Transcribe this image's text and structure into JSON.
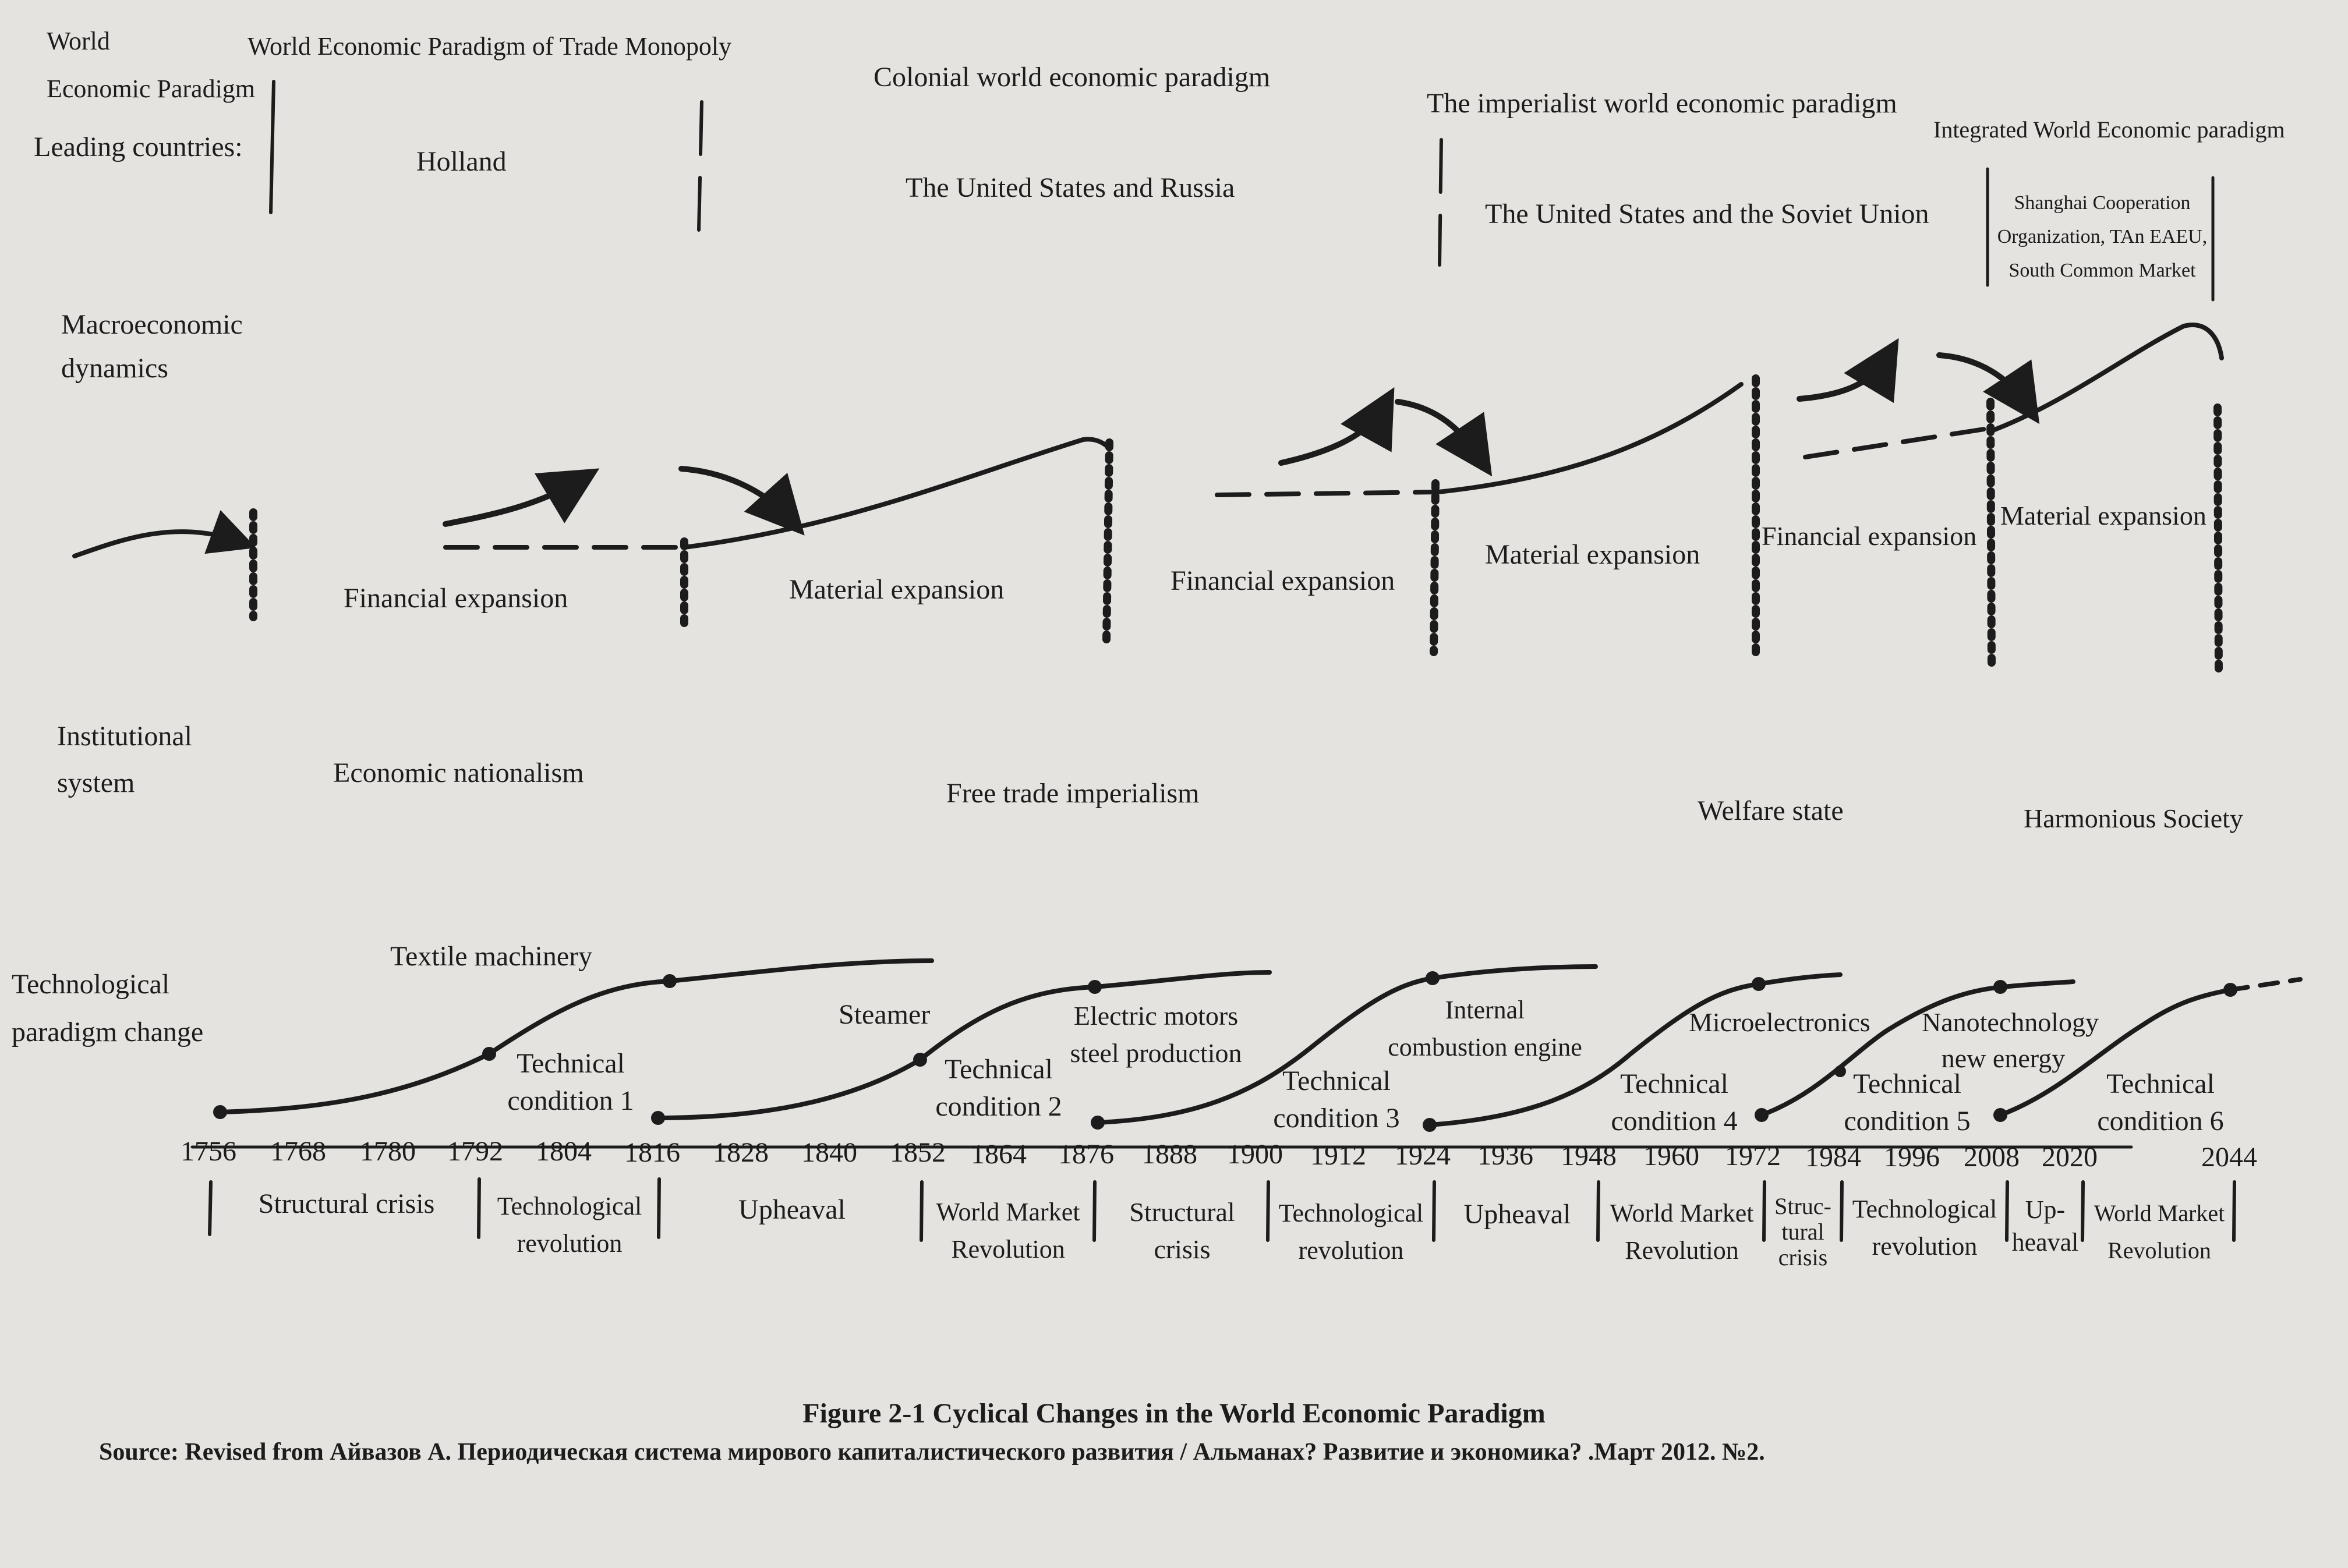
{
  "rows": {
    "paradigm_heading": "World\nEconomic Paradigm",
    "leading_countries": "Leading countries:",
    "macro": "Macroeconomic\ndynamics",
    "institutional": "Institutional\nsystem",
    "technological": "Technological\nparadigm change"
  },
  "paradigms": [
    {
      "name": "World Economic Paradigm of  Trade Monopoly",
      "countries": "Holland",
      "institution": "Economic nationalism"
    },
    {
      "name": "Colonial world economic paradigm",
      "countries": "The United States and Russia",
      "institution": "Free trade imperialism"
    },
    {
      "name": "The imperialist world economic paradigm",
      "countries": "The United States and the Soviet Union",
      "institution": "Welfare state"
    },
    {
      "name": "Integrated World Economic paradigm",
      "countries": "Shanghai Cooperation\nOrganization, TAn EAEU,\nSouth Common Market",
      "institution": "Harmonious Society"
    }
  ],
  "expansions": [
    "Financial expansion",
    "Material expansion",
    "Financial expansion",
    "Material expansion",
    "Financial expansion",
    "Material expansion"
  ],
  "technologies": [
    {
      "tech": "Textile machinery",
      "condition": "Technical\ncondition 1"
    },
    {
      "tech": "Steamer",
      "condition": "Technical\ncondition 2"
    },
    {
      "tech": "Electric motors\nsteel production",
      "condition": ""
    },
    {
      "tech": "Internal\ncombustion engine",
      "condition": "Technical\ncondition 3"
    },
    {
      "tech": "Microelectronics",
      "condition": "Technical\ncondition 4"
    },
    {
      "tech": "Nanotechnology\nnew energy",
      "condition": "Technical\ncondition 5"
    },
    {
      "tech": "",
      "condition": "Technical\ncondition 6"
    }
  ],
  "years": [
    "1756",
    "1768",
    "1780",
    "1792",
    "1804",
    "1816",
    "1828",
    "1840",
    "1852",
    "1864",
    "1876",
    "1888",
    "1900",
    "1912",
    "1924",
    "1936",
    "1948",
    "1960",
    "1972",
    "1984",
    "1996",
    "2008",
    "2020",
    "2044"
  ],
  "phases": [
    "Structural crisis",
    "Technological\nrevolution",
    "Upheaval",
    "World Market\nRevolution",
    "Structural\ncrisis",
    "Technological\nrevolution",
    "Upheaval",
    "World Market\nRevolution",
    "Struc-\ntural\ncrisis",
    "Technological\nrevolution",
    "Up-\nheaval",
    "World Market\nRevolution"
  ],
  "caption": {
    "title": "Figure 2-1 Cyclical Changes in the World Economic Paradigm",
    "source": "Source: Revised from Айвазов А. Периодическая система мирового капиталистического развития / Альманах? Развитие и экономика? .Март 2012. №2."
  },
  "colors": {
    "background": "#e4e3df",
    "ink": "#1c1c1c"
  }
}
